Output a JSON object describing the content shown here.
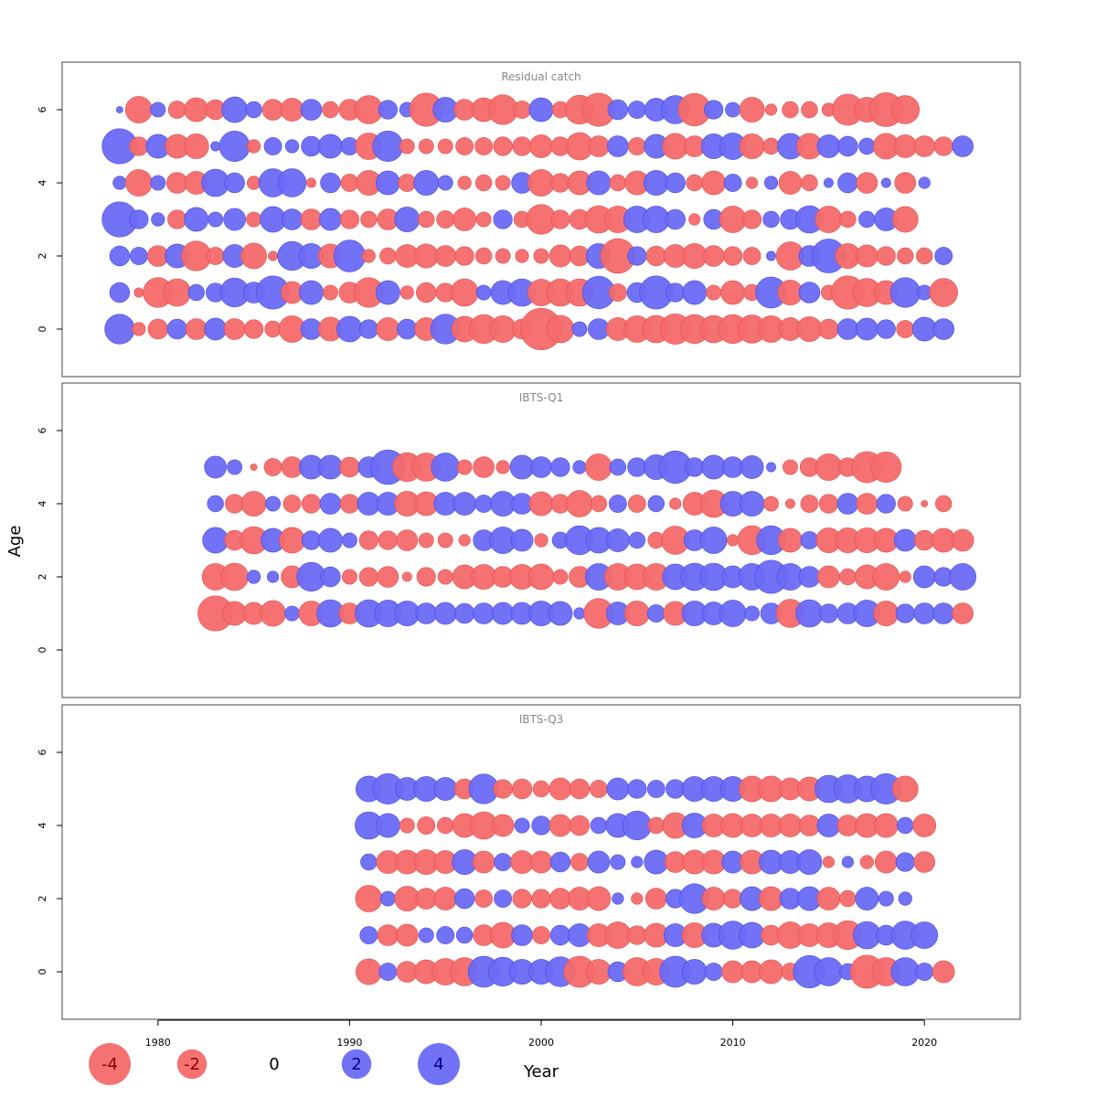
{
  "chart_data": {
    "type": "scatter",
    "encoding": "bubble",
    "xlabel": "Year",
    "ylabel": "Age",
    "xlim": [
      1975,
      2025
    ],
    "x_ticks": [
      1980,
      1990,
      2000,
      2010,
      2020
    ],
    "y_ticks": [
      0,
      2,
      4,
      6
    ],
    "ylim": [
      -1.3,
      7.3
    ],
    "colors": {
      "positive": "#6a6af5",
      "negative": "#f56a6a",
      "positive_text": "#00008b",
      "negative_text": "#8b0000"
    },
    "legend": [
      {
        "label": "-4",
        "value": -4
      },
      {
        "label": "-2",
        "value": -2
      },
      {
        "label": "0",
        "value": 0
      },
      {
        "label": "2",
        "value": 2
      },
      {
        "label": "4",
        "value": 4
      }
    ],
    "panels": [
      {
        "title": "Residual catch",
        "ages": [
          0,
          1,
          2,
          3,
          4,
          5,
          6
        ],
        "years": [
          1978,
          2021
        ],
        "residuals": {
          "0": [
            2.0,
            -0.4,
            -0.9,
            0.9,
            -1.0,
            1.1,
            -1.0,
            -0.8,
            -0.6,
            -1.6,
            1.0,
            -1.3,
            1.5,
            0.8,
            -1.2,
            0.9,
            -1.2,
            2.0,
            -1.5,
            -1.9,
            -1.6,
            -0.9,
            -3.9,
            -1.7,
            0.5,
            1.0,
            -1.2,
            -1.6,
            -1.7,
            -2.1,
            -1.9,
            -1.7,
            -1.9,
            -1.8,
            -1.6,
            -1.2,
            -1.4,
            -0.9,
            1.0,
            1.1,
            0.8,
            -0.7,
            1.3,
            1.0
          ],
          "1": [
            0.9,
            -0.2,
            -2.0,
            -1.7,
            0.6,
            0.8,
            1.9,
            1.0,
            2.5,
            -1.1,
            1.3,
            -0.5,
            -1.0,
            -2.0,
            1.3,
            -0.4,
            -0.9,
            -0.8,
            -1.7,
            0.5,
            1.3,
            1.7,
            -1.6,
            -1.7,
            -1.7,
            2.4,
            -0.7,
            0.9,
            2.5,
            0.8,
            1.3,
            -0.5,
            -1.3,
            -0.6,
            2.2,
            -1.4,
            1.0,
            -0.5,
            -2.5,
            -1.8,
            -1.3,
            2.0,
            0.5,
            -1.8
          ],
          "2": [
            0.9,
            0.7,
            -1.0,
            1.3,
            -2.0,
            -0.7,
            1.2,
            -1.5,
            -0.2,
            1.9,
            1.4,
            -1.3,
            2.3,
            -0.4,
            -0.6,
            -1.2,
            -1.3,
            -1.0,
            -0.8,
            -0.6,
            -0.5,
            -0.4,
            -0.5,
            -1.1,
            -0.9,
            1.4,
            -2.7,
            0.8,
            -0.9,
            -1.2,
            -1.4,
            -1.0,
            -0.8,
            -0.7,
            0.2,
            -1.8,
            1.0,
            2.6,
            -1.4,
            -1.1,
            -0.8,
            -0.6,
            -0.6,
            0.7
          ],
          "3": [
            2.8,
            0.8,
            0.4,
            -0.8,
            1.3,
            0.5,
            1.1,
            -0.5,
            1.5,
            1.0,
            -1.0,
            1.1,
            -0.8,
            -0.6,
            -1.0,
            1.4,
            -0.6,
            -0.7,
            -1.2,
            -0.5,
            0.8,
            -0.6,
            -2.0,
            -0.8,
            -0.9,
            -1.7,
            -1.6,
            1.6,
            1.6,
            0.9,
            -0.3,
            0.9,
            -1.6,
            -0.8,
            0.6,
            0.9,
            1.7,
            -1.6,
            -0.6,
            0.6,
            1.2,
            -1.5
          ],
          "4": [
            0.4,
            -1.6,
            0.5,
            -1.0,
            -1.2,
            1.7,
            0.9,
            -0.4,
            1.8,
            1.8,
            -0.2,
            0.9,
            -0.7,
            -1.4,
            1.3,
            -0.7,
            1.4,
            0.5,
            -0.4,
            -0.6,
            -0.5,
            1.0,
            -1.6,
            -0.8,
            -1.3,
            1.3,
            -0.6,
            -1.3,
            1.4,
            0.9,
            -0.6,
            -1.3,
            0.7,
            -0.3,
            0.4,
            -1.2,
            -0.6,
            0.2,
            0.9,
            -1.0,
            0.2,
            -1.0,
            0.3
          ],
          "5": [
            2.8,
            -0.8,
            1.3,
            -1.3,
            -1.4,
            0.2,
            2.1,
            -0.4,
            0.7,
            0.4,
            0.9,
            1.3,
            0.7,
            -1.6,
            2.1,
            -0.5,
            -0.5,
            -0.5,
            -0.7,
            -0.7,
            -0.8,
            -0.8,
            -1.2,
            -0.8,
            -1.7,
            -1.0,
            1.0,
            -0.7,
            1.3,
            -1.5,
            -1.0,
            1.4,
            1.6,
            -1.4,
            -0.6,
            1.5,
            -1.5,
            1.2,
            0.9,
            0.6,
            -1.5,
            -1.2,
            -1.0,
            -0.8,
            1.0
          ],
          "6": [
            0.1,
            -1.6,
            0.5,
            -0.7,
            -1.3,
            -0.9,
            1.5,
            0.6,
            -1.0,
            -1.2,
            1.0,
            -0.6,
            -1.0,
            -1.8,
            0.8,
            0.5,
            -2.5,
            1.4,
            -1.0,
            -1.3,
            -2.0,
            -0.7,
            1.3,
            -0.6,
            -1.9,
            -2.5,
            0.9,
            0.7,
            1.2,
            1.8,
            -2.4,
            0.8,
            0.5,
            -1.4,
            -0.3,
            -0.6,
            -0.6,
            -0.4,
            -2.2,
            -1.4,
            -2.6,
            -1.8
          ]
        }
      },
      {
        "title": "IBTS-Q1",
        "ages": [
          1,
          2,
          3,
          4,
          5
        ],
        "years": [
          1983,
          2022
        ],
        "residuals": {
          "1": [
            -2.8,
            -1.3,
            -1.1,
            -1.5,
            0.5,
            -1.4,
            1.7,
            -1.0,
            1.7,
            1.6,
            1.4,
            1.0,
            1.1,
            0.9,
            1.0,
            1.1,
            1.1,
            1.4,
            1.3,
            0.3,
            -2.0,
            1.2,
            -1.4,
            0.7,
            -1.3,
            1.4,
            1.2,
            1.6,
            0.5,
            1.0,
            -1.8,
            1.7,
            0.8,
            1.0,
            1.6,
            -1.4,
            0.8,
            1.0,
            1.0,
            -1.0
          ],
          "2": [
            -1.6,
            -1.7,
            0.4,
            0.3,
            -1.1,
            1.9,
            0.9,
            -0.5,
            -0.8,
            -1.0,
            -0.2,
            -0.8,
            -0.5,
            -1.3,
            -1.4,
            -1.0,
            -1.4,
            -1.5,
            -0.5,
            -1.0,
            1.6,
            -1.6,
            -1.5,
            -1.6,
            1.5,
            1.7,
            1.7,
            1.1,
            1.6,
            2.5,
            1.6,
            1.0,
            -1.1,
            -0.6,
            -1.3,
            -1.6,
            -0.3,
            1.1,
            0.8,
            1.6
          ],
          "3": [
            1.5,
            -0.9,
            -1.7,
            1.3,
            -1.5,
            0.8,
            1.3,
            0.5,
            -0.8,
            -0.8,
            -1.0,
            -0.5,
            -0.5,
            -0.3,
            1.0,
            1.6,
            1.1,
            -0.4,
            0.6,
            1.9,
            1.5,
            1.2,
            0.6,
            -0.6,
            -1.8,
            1.0,
            1.6,
            -0.3,
            -1.9,
            1.9,
            -1.3,
            0.7,
            -1.4,
            -1.4,
            -1.4,
            -1.3,
            1.1,
            -0.9,
            -1.3,
            -1.1
          ],
          "4": [
            0.6,
            -0.8,
            -1.4,
            0.5,
            -0.7,
            -0.8,
            1.0,
            -0.8,
            1.2,
            1.2,
            -1.4,
            -1.3,
            1.2,
            1.2,
            0.7,
            1.4,
            1.0,
            -1.3,
            -0.8,
            -1.6,
            -0.6,
            0.7,
            -0.7,
            0.6,
            -0.3,
            -1.2,
            -1.7,
            1.4,
            1.4,
            -0.5,
            -0.2,
            -0.7,
            -0.8,
            1.0,
            -1.0,
            0.8,
            -0.5,
            -0.1,
            -0.6
          ],
          "5": [
            1.1,
            0.5,
            -0.1,
            -0.7,
            -1.0,
            1.3,
            1.3,
            -0.9,
            1.0,
            2.7,
            -1.9,
            -1.8,
            1.8,
            -0.5,
            -1.0,
            -0.4,
            1.3,
            1.0,
            0.8,
            0.4,
            -1.6,
            0.6,
            0.8,
            1.4,
            2.4,
            0.8,
            1.3,
            1.0,
            1.2,
            0.2,
            -0.5,
            -0.8,
            -1.6,
            -0.8,
            -2.2,
            -2.1
          ]
        }
      },
      {
        "title": "IBTS-Q3",
        "ages": [
          0,
          1,
          2,
          3,
          4,
          5
        ],
        "years": [
          1991,
          2021
        ],
        "residuals": {
          "0": [
            -1.5,
            0.7,
            -1.0,
            -1.3,
            -1.6,
            -1.8,
            2.2,
            1.9,
            1.4,
            1.4,
            2.0,
            -2.2,
            -1.4,
            0.9,
            -1.8,
            -1.6,
            2.2,
            1.4,
            0.7,
            -1.1,
            -1.1,
            -1.3,
            -0.7,
            2.4,
            1.8,
            0.6,
            -2.5,
            -1.8,
            1.8,
            0.7,
            -1.1
          ],
          "1": [
            0.7,
            -1.0,
            -1.1,
            0.5,
            0.7,
            0.6,
            -1.0,
            -1.5,
            1.0,
            -0.7,
            0.9,
            1.2,
            -1.2,
            -1.6,
            -0.8,
            -1.3,
            1.2,
            -1.4,
            1.3,
            1.8,
            1.5,
            -0.9,
            -1.6,
            -1.2,
            -1.4,
            -1.9,
            1.7,
            0.9,
            1.8,
            1.6
          ],
          "2": [
            -1.6,
            0.5,
            -1.4,
            -1.0,
            -1.2,
            0.9,
            -0.7,
            0.7,
            -0.8,
            -0.8,
            -1.0,
            -1.2,
            -1.3,
            0.3,
            -0.3,
            -1.0,
            0.8,
            2.0,
            -1.2,
            -0.8,
            1.3,
            -1.3,
            1.0,
            1.3,
            -1.2,
            -0.6,
            1.2,
            0.5,
            0.4
          ],
          "3": [
            0.6,
            -1.2,
            -1.3,
            -1.4,
            -1.2,
            1.4,
            -1.1,
            0.7,
            -1.2,
            -1.1,
            0.9,
            -0.7,
            1.1,
            0.5,
            0.3,
            1.3,
            -1.0,
            -1.3,
            -1.3,
            1.1,
            -1.3,
            1.3,
            1.2,
            1.4,
            -0.3,
            0.3,
            -0.4,
            -1.1,
            0.8,
            -1.0
          ],
          "4": [
            1.7,
            1.3,
            -0.5,
            -0.7,
            -0.6,
            -1.3,
            -1.7,
            -1.1,
            0.5,
            0.8,
            -1.1,
            -0.9,
            0.6,
            1.3,
            1.9,
            -0.6,
            -1.5,
            1.4,
            -1.2,
            -1.3,
            -1.2,
            -1.2,
            -1.2,
            -1.0,
            1.2,
            -1.0,
            -1.3,
            -1.3,
            0.6,
            -1.2
          ],
          "5": [
            1.5,
            2.1,
            1.2,
            1.4,
            1.2,
            -0.9,
            2.0,
            -0.8,
            -0.9,
            -0.6,
            -1.1,
            -0.9,
            -0.7,
            1.1,
            0.8,
            0.7,
            0.8,
            1.4,
            1.4,
            1.4,
            -1.5,
            -1.5,
            -1.1,
            -1.3,
            1.7,
            1.8,
            1.5,
            2.1,
            -1.5
          ]
        }
      }
    ]
  }
}
